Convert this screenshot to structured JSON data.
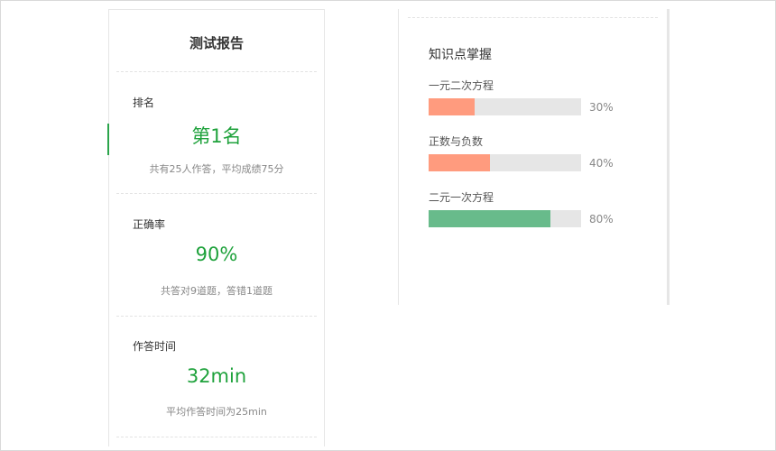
{
  "report": {
    "title": "测试报告",
    "sections": [
      {
        "label": "排名",
        "value": "第1名",
        "detail": "共有25人作答，平均成绩75分"
      },
      {
        "label": "正确率",
        "value": "90%",
        "detail": "共答对9道题，答错1道题"
      },
      {
        "label": "作答时间",
        "value": "32min",
        "detail": "平均作答时间为25min"
      }
    ]
  },
  "knowledge": {
    "title": "知识点掌握",
    "items": [
      {
        "name": "一元二次方程",
        "percent": 30,
        "percent_label": "30%",
        "color": "#ff9b7e"
      },
      {
        "name": "正数与负数",
        "percent": 40,
        "percent_label": "40%",
        "color": "#ff9b7e"
      },
      {
        "name": "二元一次方程",
        "percent": 80,
        "percent_label": "80%",
        "color": "#68bb8b"
      }
    ]
  },
  "colors": {
    "accent_green": "#1fa23c",
    "bar_track": "#e6e6e6"
  }
}
